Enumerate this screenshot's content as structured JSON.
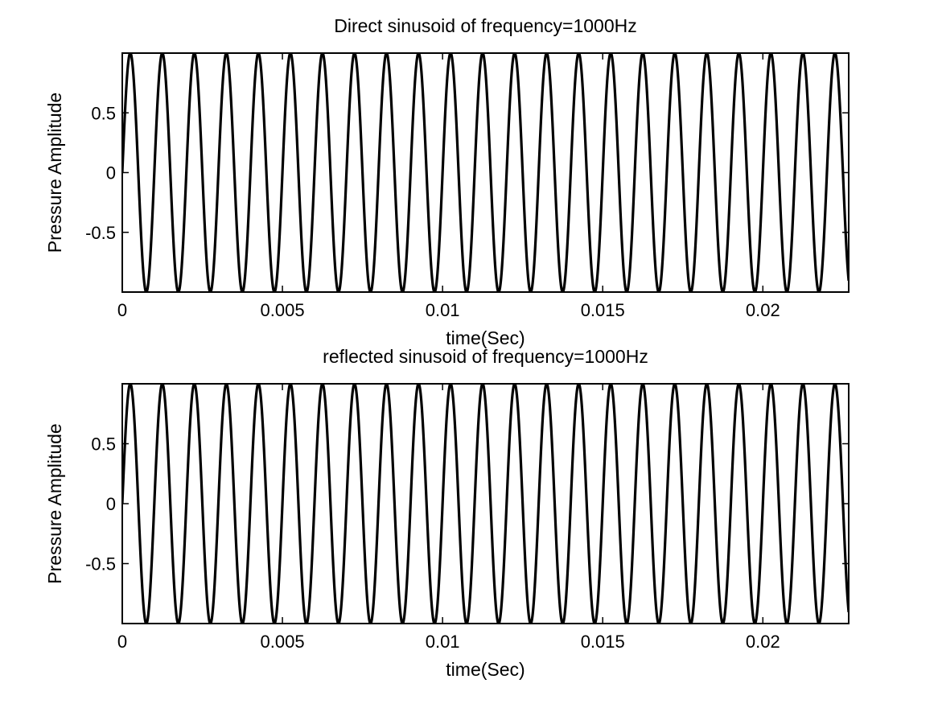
{
  "chart_data": [
    {
      "type": "line",
      "title": "Direct sinusoid of frequency=1000Hz",
      "xlabel": "time(Sec)",
      "ylabel": "Pressure Amplitude",
      "xlim": [
        0,
        0.02268
      ],
      "ylim": [
        -1,
        1
      ],
      "xticks": [
        0,
        0.005,
        0.01,
        0.015,
        0.02
      ],
      "xtick_labels": [
        "0",
        "0.005",
        "0.01",
        "0.015",
        "0.02"
      ],
      "yticks": [
        0.5,
        0,
        -0.5
      ],
      "ytick_labels": [
        "0.5",
        "0",
        "-0.5"
      ],
      "grid": false,
      "series": [
        {
          "frequency_hz": 1000,
          "amplitude": 1,
          "phase_deg": 0,
          "color": "#000000"
        }
      ]
    },
    {
      "type": "line",
      "title": "reflected sinusoid of frequency=1000Hz",
      "xlabel": "time(Sec)",
      "ylabel": "Pressure Amplitude",
      "xlim": [
        0,
        0.02268
      ],
      "ylim": [
        -1,
        1
      ],
      "xticks": [
        0,
        0.005,
        0.01,
        0.015,
        0.02
      ],
      "xtick_labels": [
        "0",
        "0.005",
        "0.01",
        "0.015",
        "0.02"
      ],
      "yticks": [
        0.5,
        0,
        -0.5
      ],
      "ytick_labels": [
        "0.5",
        "0",
        "-0.5"
      ],
      "grid": false,
      "series": [
        {
          "frequency_hz": 1000,
          "amplitude": 1,
          "phase_deg": 0,
          "color": "#000000"
        }
      ]
    }
  ]
}
